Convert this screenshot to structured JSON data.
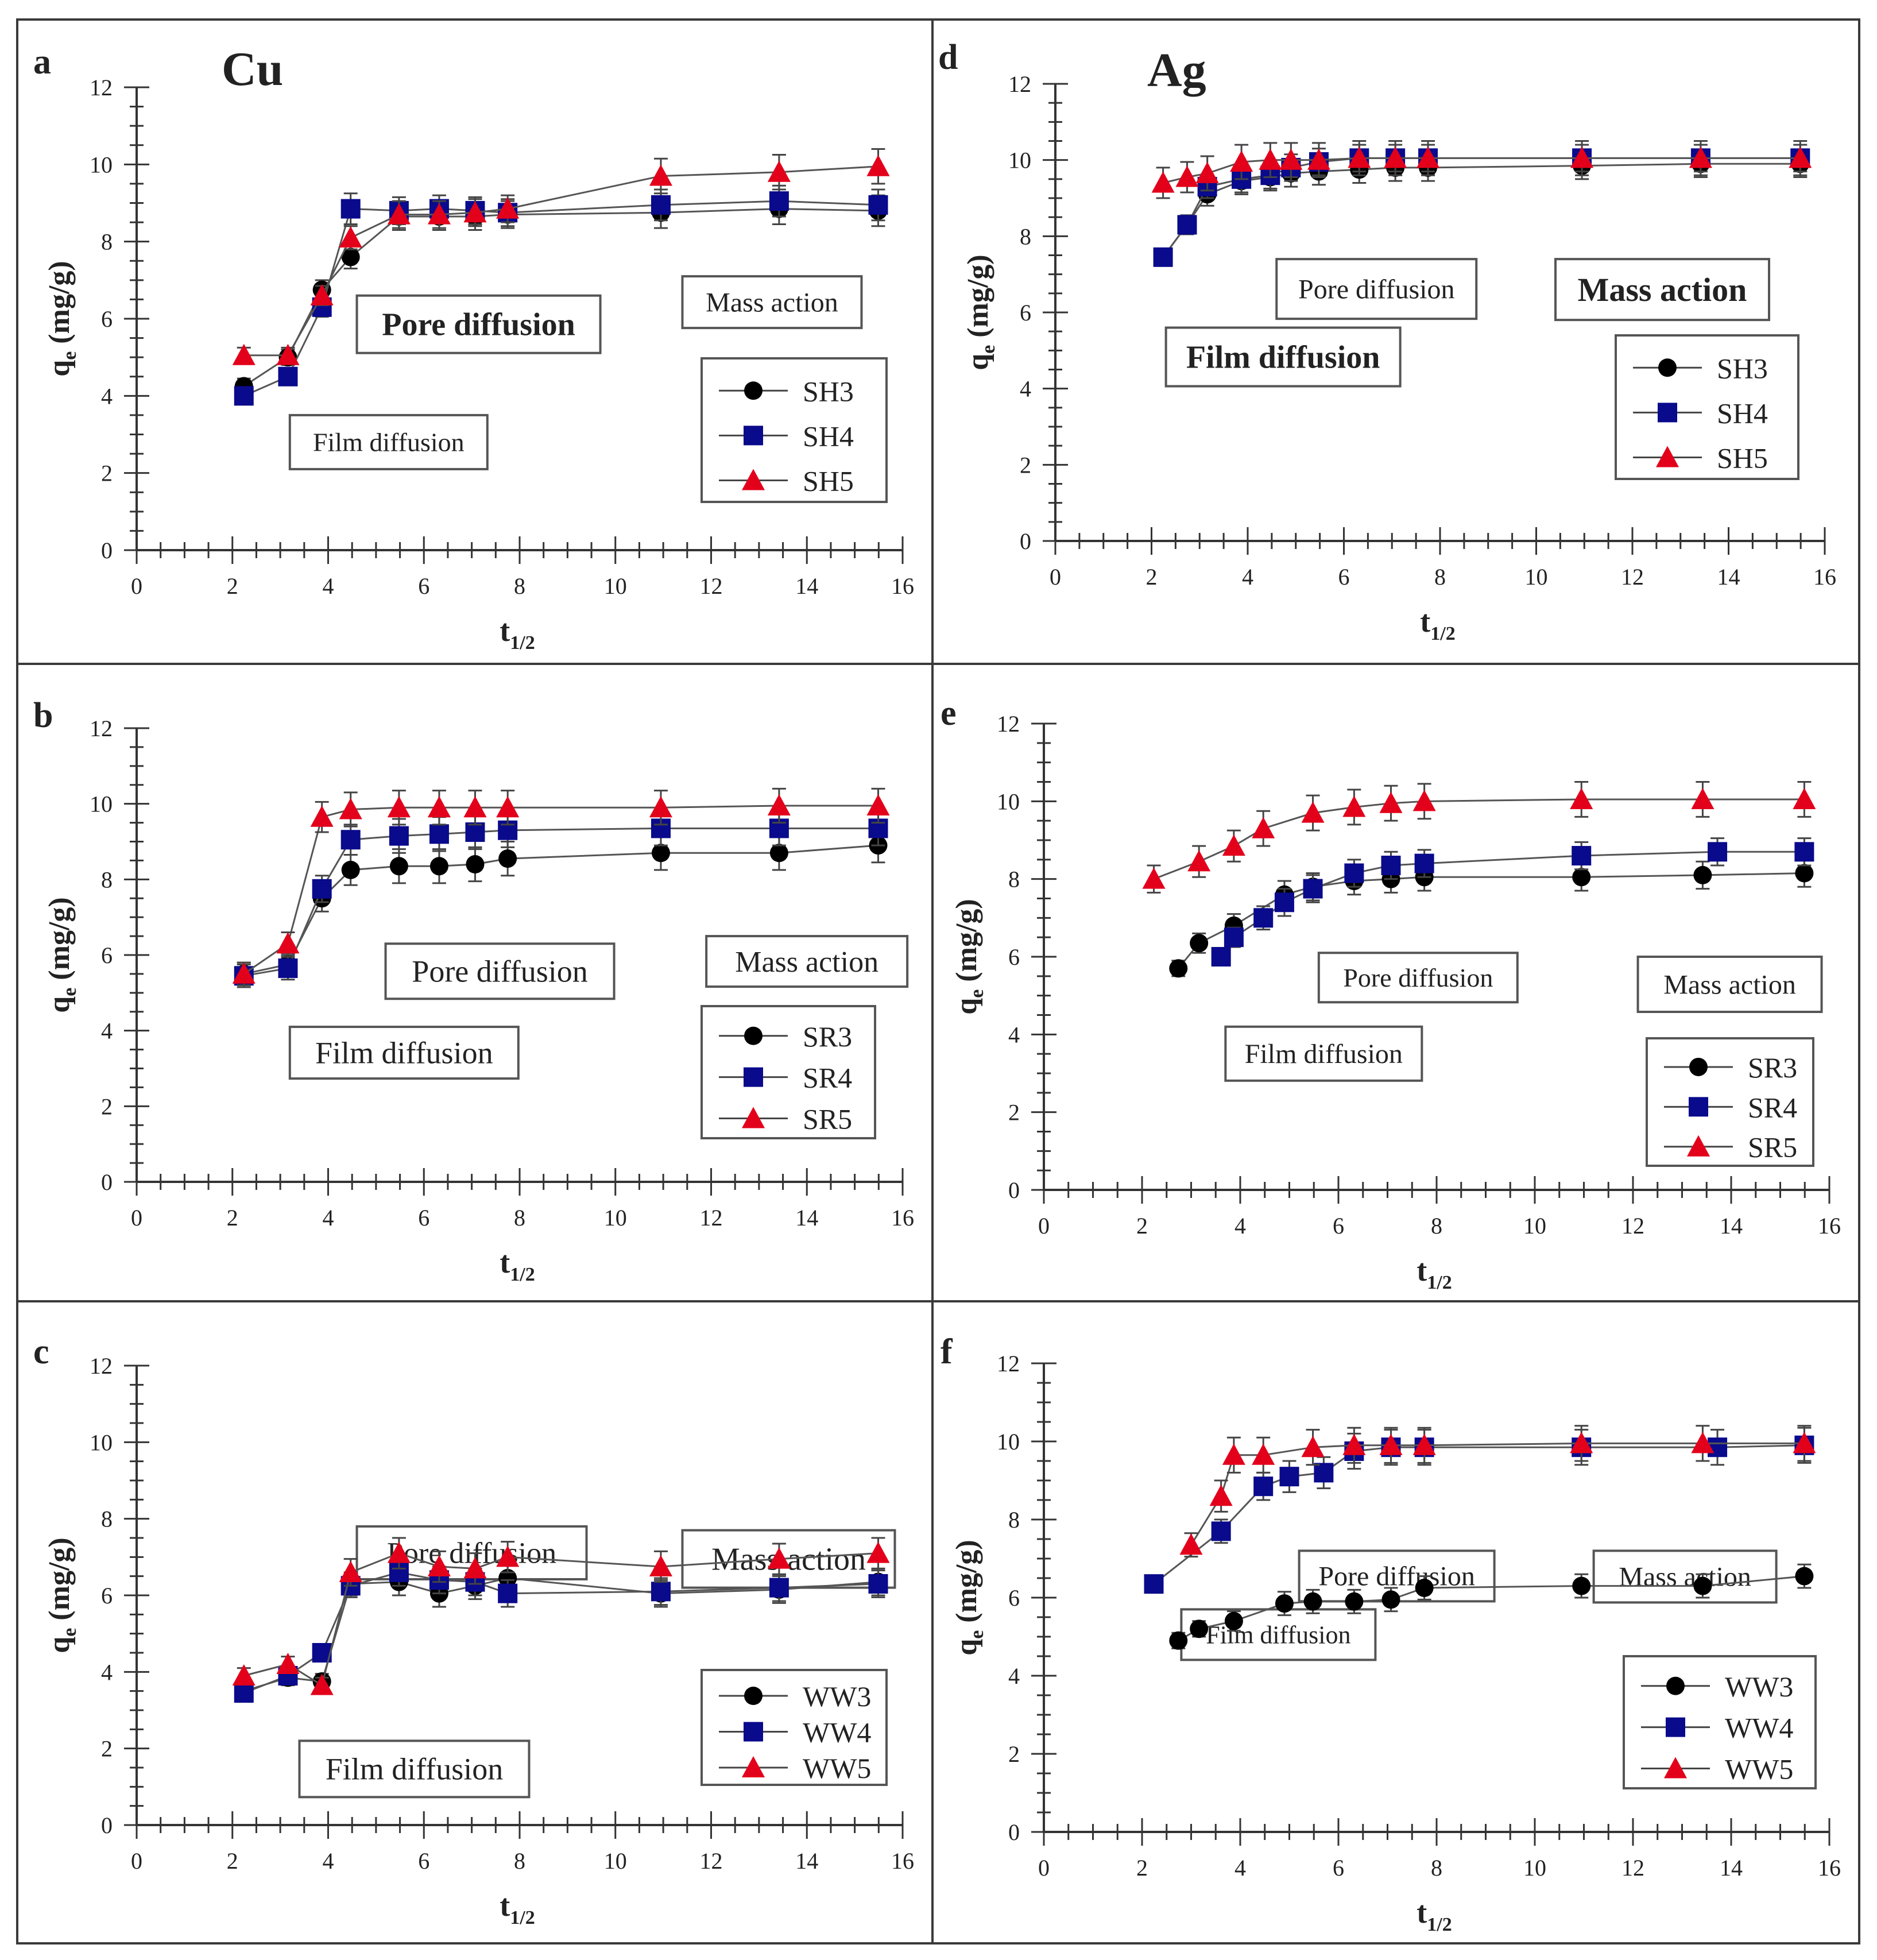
{
  "colors": {
    "SH3": "#000000",
    "SH4": "#0a0a8c",
    "SH5": "#e3001b",
    "border": "#3a3a3a",
    "text": "#222222"
  },
  "chart_data": [
    {
      "id": "a",
      "panel_letter": "a",
      "element": "Cu",
      "type": "line",
      "xlabel_main": "t",
      "xlabel_sub": "1/2",
      "ylabel_main": "q",
      "ylabel_sub": "e",
      "ylabel_unit": " (mg/g)",
      "xlim": [
        0,
        16
      ],
      "ylim": [
        0,
        12
      ],
      "xticks": [
        "0",
        "2",
        "4",
        "6",
        "8",
        "10",
        "12",
        "14",
        "16"
      ],
      "yticks": [
        "0",
        "2",
        "4",
        "6",
        "8",
        "10",
        "12"
      ],
      "x": [
        2.24,
        3.16,
        3.87,
        4.47,
        5.48,
        6.32,
        7.07,
        7.75,
        10.95,
        13.42,
        15.49
      ],
      "series": [
        {
          "name": "SH3",
          "marker": "circle",
          "values": [
            4.25,
            5.0,
            6.75,
            7.6,
            8.65,
            8.65,
            8.65,
            8.7,
            8.75,
            8.85,
            8.8
          ],
          "err": [
            0.2,
            0.2,
            0.25,
            0.3,
            0.35,
            0.35,
            0.35,
            0.35,
            0.4,
            0.4,
            0.4
          ]
        },
        {
          "name": "SH4",
          "marker": "square",
          "values": [
            4.0,
            4.5,
            6.3,
            8.85,
            8.8,
            8.85,
            8.8,
            8.75,
            8.95,
            9.05,
            8.95
          ],
          "err": [
            0.2,
            0.2,
            0.25,
            0.4,
            0.35,
            0.35,
            0.35,
            0.35,
            0.4,
            0.4,
            0.4
          ]
        },
        {
          "name": "SH5",
          "marker": "triangle",
          "values": [
            5.05,
            5.05,
            6.6,
            8.1,
            8.7,
            8.7,
            8.75,
            8.85,
            9.7,
            9.8,
            9.95
          ],
          "err": [
            0.2,
            0.2,
            0.25,
            0.3,
            0.35,
            0.35,
            0.35,
            0.35,
            0.45,
            0.45,
            0.45
          ]
        }
      ],
      "annotations": [
        {
          "text": "Film diffusion",
          "anchor_x": 3.2,
          "anchor_y": 3.5,
          "bold": false
        },
        {
          "text": "Pore diffusion",
          "anchor_x": 4.6,
          "anchor_y": 6.6,
          "bold": true
        },
        {
          "text": "Mass action",
          "anchor_x": 11.4,
          "anchor_y": 7.1,
          "bold": false
        }
      ],
      "legend_position": "lower-right"
    },
    {
      "id": "b",
      "panel_letter": "b",
      "element": "",
      "type": "line",
      "xlabel_main": "t",
      "xlabel_sub": "1/2",
      "ylabel_main": "q",
      "ylabel_sub": "e",
      "ylabel_unit": " (mg/g)",
      "xlim": [
        0,
        16
      ],
      "ylim": [
        0,
        12
      ],
      "xticks": [
        "0",
        "2",
        "4",
        "6",
        "8",
        "10",
        "12",
        "14",
        "16"
      ],
      "yticks": [
        "0",
        "2",
        "4",
        "6",
        "8",
        "10",
        "12"
      ],
      "x": [
        2.24,
        3.16,
        3.87,
        4.47,
        5.48,
        6.32,
        7.07,
        7.75,
        10.95,
        13.42,
        15.49
      ],
      "series": [
        {
          "name": "SR3",
          "marker": "circle",
          "values": [
            5.5,
            5.75,
            7.5,
            8.25,
            8.35,
            8.35,
            8.4,
            8.55,
            8.7,
            8.7,
            8.9
          ],
          "err": [
            0.3,
            0.3,
            0.35,
            0.4,
            0.45,
            0.45,
            0.45,
            0.45,
            0.45,
            0.45,
            0.45
          ]
        },
        {
          "name": "SR4",
          "marker": "square",
          "values": [
            5.45,
            5.65,
            7.75,
            9.05,
            9.15,
            9.2,
            9.25,
            9.3,
            9.35,
            9.35,
            9.35
          ],
          "err": [
            0.3,
            0.3,
            0.35,
            0.4,
            0.45,
            0.45,
            0.45,
            0.45,
            0.45,
            0.45,
            0.45
          ]
        },
        {
          "name": "SR5",
          "marker": "triangle",
          "values": [
            5.5,
            6.3,
            9.65,
            9.85,
            9.9,
            9.9,
            9.9,
            9.9,
            9.9,
            9.95,
            9.95
          ],
          "err": [
            0.3,
            0.3,
            0.4,
            0.45,
            0.45,
            0.45,
            0.45,
            0.45,
            0.45,
            0.45,
            0.45
          ]
        }
      ],
      "annotations": [
        {
          "text": "Film diffusion",
          "anchor_x": 3.2,
          "anchor_y": 4.1,
          "bold": false
        },
        {
          "text": "Pore diffusion",
          "anchor_x": 5.2,
          "anchor_y": 6.3,
          "bold": false
        },
        {
          "text": "Mass action",
          "anchor_x": 11.9,
          "anchor_y": 6.5,
          "bold": false
        }
      ],
      "legend_position": "lower-right"
    },
    {
      "id": "c",
      "panel_letter": "c",
      "element": "",
      "type": "line",
      "xlabel_main": "t",
      "xlabel_sub": "1/2",
      "ylabel_main": "q",
      "ylabel_sub": "e",
      "ylabel_unit": " (mg/g)",
      "xlim": [
        0,
        16
      ],
      "ylim": [
        0,
        12
      ],
      "xticks": [
        "0",
        "2",
        "4",
        "6",
        "8",
        "10",
        "12",
        "14",
        "16"
      ],
      "yticks": [
        "0",
        "2",
        "4",
        "6",
        "8",
        "10",
        "12"
      ],
      "x": [
        2.24,
        3.16,
        3.87,
        4.47,
        5.48,
        6.32,
        7.07,
        7.75,
        10.95,
        13.42,
        15.49
      ],
      "series": [
        {
          "name": "WW3",
          "marker": "circle",
          "values": [
            3.5,
            3.85,
            3.75,
            6.3,
            6.35,
            6.05,
            6.25,
            6.45,
            6.05,
            6.15,
            6.35
          ],
          "err": [
            0.2,
            0.2,
            0.2,
            0.3,
            0.35,
            0.35,
            0.35,
            0.35,
            0.35,
            0.35,
            0.35
          ]
        },
        {
          "name": "WW4",
          "marker": "square",
          "values": [
            3.45,
            3.9,
            4.5,
            6.25,
            6.6,
            6.4,
            6.35,
            6.05,
            6.1,
            6.2,
            6.3
          ],
          "err": [
            0.2,
            0.2,
            0.2,
            0.3,
            0.35,
            0.35,
            0.35,
            0.35,
            0.35,
            0.35,
            0.35
          ]
        },
        {
          "name": "WW5",
          "marker": "triangle",
          "values": [
            3.9,
            4.2,
            3.65,
            6.6,
            7.1,
            6.75,
            6.7,
            7.0,
            6.75,
            6.95,
            7.1
          ],
          "err": [
            0.2,
            0.2,
            0.2,
            0.35,
            0.4,
            0.4,
            0.4,
            0.4,
            0.4,
            0.4,
            0.4
          ]
        }
      ],
      "annotations": [
        {
          "text": "Film diffusion",
          "anchor_x": 3.4,
          "anchor_y": 2.2,
          "bold": false
        },
        {
          "text": "Pore diffusion",
          "anchor_x": 4.6,
          "anchor_y": 7.8,
          "bold": false
        },
        {
          "text": "Mass action",
          "anchor_x": 11.4,
          "anchor_y": 7.7,
          "bold": false
        }
      ],
      "legend_position": "lower-right"
    },
    {
      "id": "d",
      "panel_letter": "d",
      "element": "Ag",
      "type": "line",
      "xlabel_main": "t",
      "xlabel_sub": "1/2",
      "ylabel_main": "q",
      "ylabel_sub": "e",
      "ylabel_unit": " (mg/g)",
      "xlim": [
        0,
        16
      ],
      "ylim": [
        0,
        12
      ],
      "xticks": [
        "0",
        "2",
        "4",
        "6",
        "8",
        "10",
        "12",
        "14",
        "16"
      ],
      "yticks": [
        "0",
        "2",
        "4",
        "6",
        "8",
        "10",
        "12"
      ],
      "x": [
        2.24,
        2.74,
        3.16,
        3.87,
        4.47,
        4.9,
        5.48,
        6.32,
        7.07,
        7.75,
        10.95,
        13.42,
        15.49
      ],
      "series": [
        {
          "name": "SH3",
          "marker": "circle",
          "values": [
            7.45,
            8.3,
            9.1,
            9.45,
            9.55,
            9.65,
            9.7,
            9.75,
            9.8,
            9.8,
            9.85,
            9.9,
            9.9
          ],
          "err": [
            0.2,
            0.25,
            0.3,
            0.35,
            0.35,
            0.35,
            0.35,
            0.35,
            0.35,
            0.35,
            0.35,
            0.35,
            0.35
          ]
        },
        {
          "name": "SH4",
          "marker": "square",
          "values": [
            7.45,
            8.3,
            9.3,
            9.5,
            9.6,
            9.8,
            9.95,
            10.05,
            10.05,
            10.05,
            10.05,
            10.05,
            10.05
          ],
          "err": [
            0.2,
            0.25,
            0.3,
            0.35,
            0.35,
            0.35,
            0.35,
            0.35,
            0.35,
            0.35,
            0.35,
            0.35,
            0.35
          ]
        },
        {
          "name": "SH5",
          "marker": "triangle",
          "values": [
            9.4,
            9.55,
            9.65,
            9.95,
            10.0,
            10.0,
            10.0,
            10.05,
            10.05,
            10.05,
            10.05,
            10.05,
            10.05
          ],
          "err": [
            0.4,
            0.4,
            0.45,
            0.45,
            0.45,
            0.45,
            0.45,
            0.45,
            0.45,
            0.45,
            0.45,
            0.45,
            0.45
          ]
        }
      ],
      "annotations": [
        {
          "text": "Film diffusion",
          "anchor_x": 2.3,
          "anchor_y": 5.6,
          "bold": true
        },
        {
          "text": "Pore diffusion",
          "anchor_x": 4.6,
          "anchor_y": 7.4,
          "bold": false
        },
        {
          "text": "Mass action",
          "anchor_x": 10.4,
          "anchor_y": 7.4,
          "bold": true
        }
      ],
      "legend_position": "lower-right"
    },
    {
      "id": "e",
      "panel_letter": "e",
      "element": "",
      "type": "line",
      "xlabel_main": "t",
      "xlabel_sub": "1/2",
      "ylabel_main": "q",
      "ylabel_sub": "e",
      "ylabel_unit": " (mg/g)",
      "xlim": [
        0,
        16
      ],
      "ylim": [
        0,
        12
      ],
      "xticks": [
        "0",
        "2",
        "4",
        "6",
        "8",
        "10",
        "12",
        "14",
        "16"
      ],
      "yticks": [
        "0",
        "2",
        "4",
        "6",
        "8",
        "10",
        "12"
      ],
      "x_SR3": [
        2.74,
        3.16,
        3.87,
        4.9,
        5.48,
        6.32,
        7.07,
        7.75,
        10.95,
        13.42,
        15.49
      ],
      "x": [
        2.24,
        3.16,
        3.61,
        3.87,
        4.47,
        4.9,
        5.48,
        6.32,
        7.07,
        7.75,
        10.95,
        13.72,
        15.49
      ],
      "series": [
        {
          "name": "SR3",
          "marker": "circle",
          "x": [
            2.74,
            3.16,
            3.87,
            4.9,
            5.48,
            6.32,
            7.07,
            7.75,
            10.95,
            13.42,
            15.49
          ],
          "values": [
            5.7,
            6.35,
            6.8,
            7.6,
            7.8,
            7.95,
            8.0,
            8.05,
            8.05,
            8.1,
            8.15
          ],
          "err": [
            0.2,
            0.25,
            0.3,
            0.35,
            0.35,
            0.35,
            0.35,
            0.35,
            0.35,
            0.35,
            0.35
          ]
        },
        {
          "name": "SR4",
          "marker": "square",
          "x": [
            3.61,
            3.87,
            4.47,
            4.9,
            5.48,
            6.32,
            7.07,
            7.75,
            10.95,
            13.72,
            15.49
          ],
          "values": [
            6.0,
            6.5,
            7.0,
            7.4,
            7.75,
            8.15,
            8.35,
            8.4,
            8.6,
            8.7,
            8.7
          ],
          "err": [
            0.2,
            0.25,
            0.3,
            0.35,
            0.35,
            0.35,
            0.35,
            0.35,
            0.35,
            0.35,
            0.35
          ]
        },
        {
          "name": "SR5",
          "marker": "triangle",
          "x": [
            2.24,
            3.16,
            3.87,
            4.47,
            5.48,
            6.32,
            7.07,
            7.75,
            10.95,
            13.42,
            15.49
          ],
          "values": [
            8.0,
            8.45,
            8.85,
            9.3,
            9.7,
            9.85,
            9.95,
            10.0,
            10.05,
            10.05,
            10.05
          ],
          "err": [
            0.35,
            0.4,
            0.4,
            0.45,
            0.45,
            0.45,
            0.45,
            0.45,
            0.45,
            0.45,
            0.45
          ]
        }
      ],
      "annotations": [
        {
          "text": "Film diffusion",
          "anchor_x": 3.7,
          "anchor_y": 4.2,
          "bold": false
        },
        {
          "text": "Pore diffusion",
          "anchor_x": 5.6,
          "anchor_y": 6.1,
          "bold": false
        },
        {
          "text": "Mass action",
          "anchor_x": 12.1,
          "anchor_y": 6.0,
          "bold": false
        }
      ],
      "legend_position": "lower-right"
    },
    {
      "id": "f",
      "panel_letter": "f",
      "element": "",
      "type": "line",
      "xlabel_main": "t",
      "xlabel_sub": "1/2",
      "ylabel_main": "q",
      "ylabel_sub": "e",
      "ylabel_unit": " (mg/g)",
      "xlim": [
        0,
        16
      ],
      "ylim": [
        0,
        12
      ],
      "xticks": [
        "0",
        "2",
        "4",
        "6",
        "8",
        "10",
        "12",
        "14",
        "16"
      ],
      "yticks": [
        "0",
        "2",
        "4",
        "6",
        "8",
        "10",
        "12"
      ],
      "x": [
        2.24,
        3.16,
        3.61,
        3.87,
        4.47,
        5.48,
        6.32,
        7.07,
        7.75,
        10.95,
        13.42,
        15.49
      ],
      "series": [
        {
          "name": "WW3",
          "marker": "circle",
          "x": [
            2.74,
            3.16,
            3.87,
            4.9,
            5.48,
            6.32,
            7.07,
            7.75,
            10.95,
            13.42,
            15.49
          ],
          "values": [
            4.9,
            5.2,
            5.4,
            5.85,
            5.9,
            5.9,
            5.95,
            6.25,
            6.3,
            6.3,
            6.55
          ],
          "err": [
            0.2,
            0.2,
            0.25,
            0.3,
            0.3,
            0.3,
            0.3,
            0.3,
            0.3,
            0.3,
            0.3
          ]
        },
        {
          "name": "WW4",
          "marker": "square",
          "x": [
            2.24,
            3.61,
            4.47,
            5.0,
            5.7,
            6.32,
            7.07,
            7.75,
            10.95,
            13.72,
            15.49
          ],
          "values": [
            6.35,
            7.7,
            8.85,
            9.1,
            9.2,
            9.75,
            9.85,
            9.85,
            9.85,
            9.85,
            9.9
          ],
          "err": [
            0.2,
            0.3,
            0.35,
            0.4,
            0.4,
            0.45,
            0.45,
            0.45,
            0.45,
            0.45,
            0.45
          ]
        },
        {
          "name": "WW5",
          "marker": "triangle",
          "x": [
            3.0,
            3.61,
            3.87,
            4.47,
            5.48,
            6.32,
            7.07,
            7.75,
            10.95,
            13.42,
            15.49
          ],
          "values": [
            7.35,
            8.6,
            9.65,
            9.65,
            9.85,
            9.9,
            9.9,
            9.9,
            9.95,
            9.95,
            9.95
          ],
          "err": [
            0.3,
            0.4,
            0.45,
            0.45,
            0.45,
            0.45,
            0.45,
            0.45,
            0.45,
            0.45,
            0.45
          ]
        }
      ],
      "annotations": [
        {
          "text": "Film diffusion",
          "anchor_x": 2.8,
          "anchor_y": 5.7,
          "bold": false
        },
        {
          "text": "Pore diffusion",
          "anchor_x": 5.2,
          "anchor_y": 7.2,
          "bold": false
        },
        {
          "text": "Mass action",
          "anchor_x": 11.2,
          "anchor_y": 7.2,
          "bold": false
        }
      ],
      "legend_position": "lower-right"
    }
  ]
}
